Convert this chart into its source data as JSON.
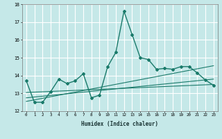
{
  "xlabel": "Humidex (Indice chaleur)",
  "background_color": "#c5e8e8",
  "grid_color": "#ffffff",
  "line_color": "#1a7a6a",
  "x_values": [
    0,
    1,
    2,
    3,
    4,
    5,
    6,
    7,
    8,
    9,
    10,
    11,
    12,
    13,
    14,
    15,
    16,
    17,
    18,
    19,
    20,
    21,
    22,
    23
  ],
  "line1_y": [
    13.7,
    12.5,
    12.5,
    13.1,
    13.8,
    13.55,
    13.7,
    14.1,
    12.75,
    12.9,
    14.5,
    15.3,
    17.6,
    16.3,
    15.0,
    14.9,
    14.35,
    14.4,
    14.35,
    14.5,
    14.5,
    14.15,
    13.75,
    13.45
  ],
  "trend1_x": [
    0,
    23
  ],
  "trend1_y": [
    12.55,
    14.55
  ],
  "trend2_x": [
    0,
    23
  ],
  "trend2_y": [
    12.75,
    13.8
  ],
  "trend3_x": [
    0,
    23
  ],
  "trend3_y": [
    13.05,
    13.5
  ],
  "ylim": [
    12,
    18
  ],
  "yticks": [
    12,
    13,
    14,
    15,
    16,
    17,
    18
  ],
  "xlim": [
    -0.5,
    23.5
  ]
}
